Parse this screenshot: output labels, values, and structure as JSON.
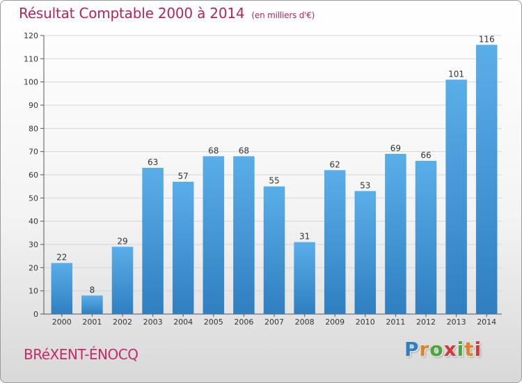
{
  "header": {
    "title": "Résultat Comptable 2000 à 2014",
    "subtitle": "(en milliers d'€)"
  },
  "footer": {
    "commune": "BRéXENT-ÉNOCQ",
    "logo_letters": [
      "P",
      "r",
      "o",
      "x",
      "i",
      "t",
      "i"
    ]
  },
  "colors": {
    "title": "#b3245e",
    "bar_top": "#5aaee8",
    "bar_bottom": "#2f7fc1",
    "grid": "#d6d6d6",
    "logo": [
      "#2f7fc1",
      "#e0812a",
      "#4aa53a",
      "#d23a3a",
      "#4aa53a",
      "#e0812a",
      "#d23a3a"
    ]
  },
  "chart_data": {
    "type": "bar",
    "title": "Résultat Comptable 2000 à 2014",
    "subtitle": "(en milliers d'€)",
    "categories": [
      "2000",
      "2001",
      "2002",
      "2003",
      "2004",
      "2005",
      "2006",
      "2007",
      "2008",
      "2009",
      "2010",
      "2011",
      "2012",
      "2013",
      "2014"
    ],
    "values": [
      22,
      8,
      29,
      63,
      57,
      68,
      68,
      55,
      31,
      62,
      53,
      69,
      66,
      101,
      116
    ],
    "ylim": [
      0,
      120
    ],
    "yticks": [
      0,
      10,
      20,
      30,
      40,
      50,
      60,
      70,
      80,
      90,
      100,
      110,
      120
    ],
    "grid": true,
    "data_labels": true
  }
}
